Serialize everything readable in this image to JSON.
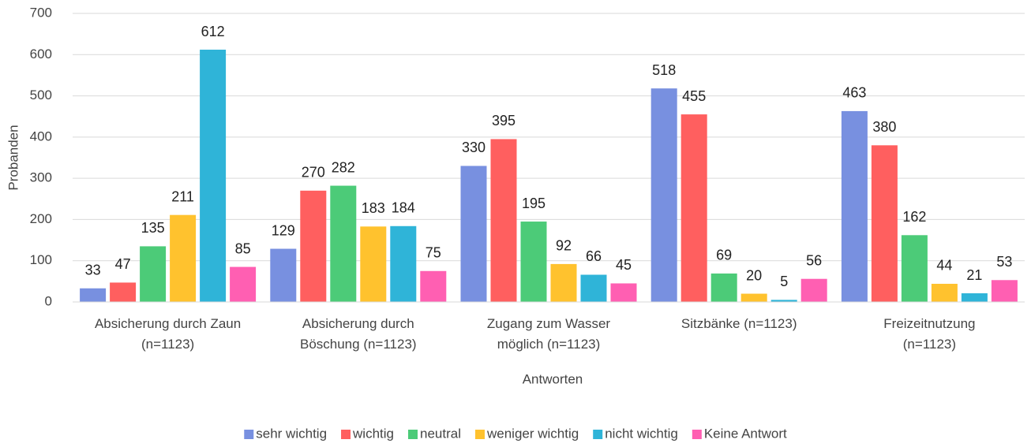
{
  "chart_data": {
    "type": "bar",
    "ylabel": "Probanden",
    "xlabel": "Antworten",
    "categories": [
      [
        "Absicherung durch Zaun",
        "(n=1123)"
      ],
      [
        "Absicherung durch",
        "Böschung (n=1123)"
      ],
      [
        "Zugang zum Wasser",
        "möglich (n=1123)"
      ],
      [
        "Sitzbänke (n=1123)"
      ],
      [
        "Freizeitnutzung",
        "(n=1123)"
      ]
    ],
    "series": [
      {
        "name": "sehr wichtig",
        "color": "#7890e0",
        "values": [
          33,
          129,
          330,
          518,
          463
        ]
      },
      {
        "name": "wichtig",
        "color": "#ff5f5f",
        "values": [
          47,
          270,
          395,
          455,
          380
        ]
      },
      {
        "name": "neutral",
        "color": "#4ccb78",
        "values": [
          135,
          282,
          195,
          69,
          162
        ]
      },
      {
        "name": "weniger wichtig",
        "color": "#ffc22e",
        "values": [
          211,
          183,
          92,
          20,
          44
        ]
      },
      {
        "name": "nicht wichtig",
        "color": "#2fb4d8",
        "values": [
          612,
          184,
          66,
          5,
          21
        ]
      },
      {
        "name": "Keine Antwort",
        "color": "#ff5fb2",
        "values": [
          85,
          75,
          45,
          56,
          53
        ]
      }
    ],
    "ylim": [
      0,
      700
    ],
    "yticks": [
      0,
      100,
      200,
      300,
      400,
      500,
      600,
      700
    ],
    "grid": true,
    "legend": "bottom"
  }
}
